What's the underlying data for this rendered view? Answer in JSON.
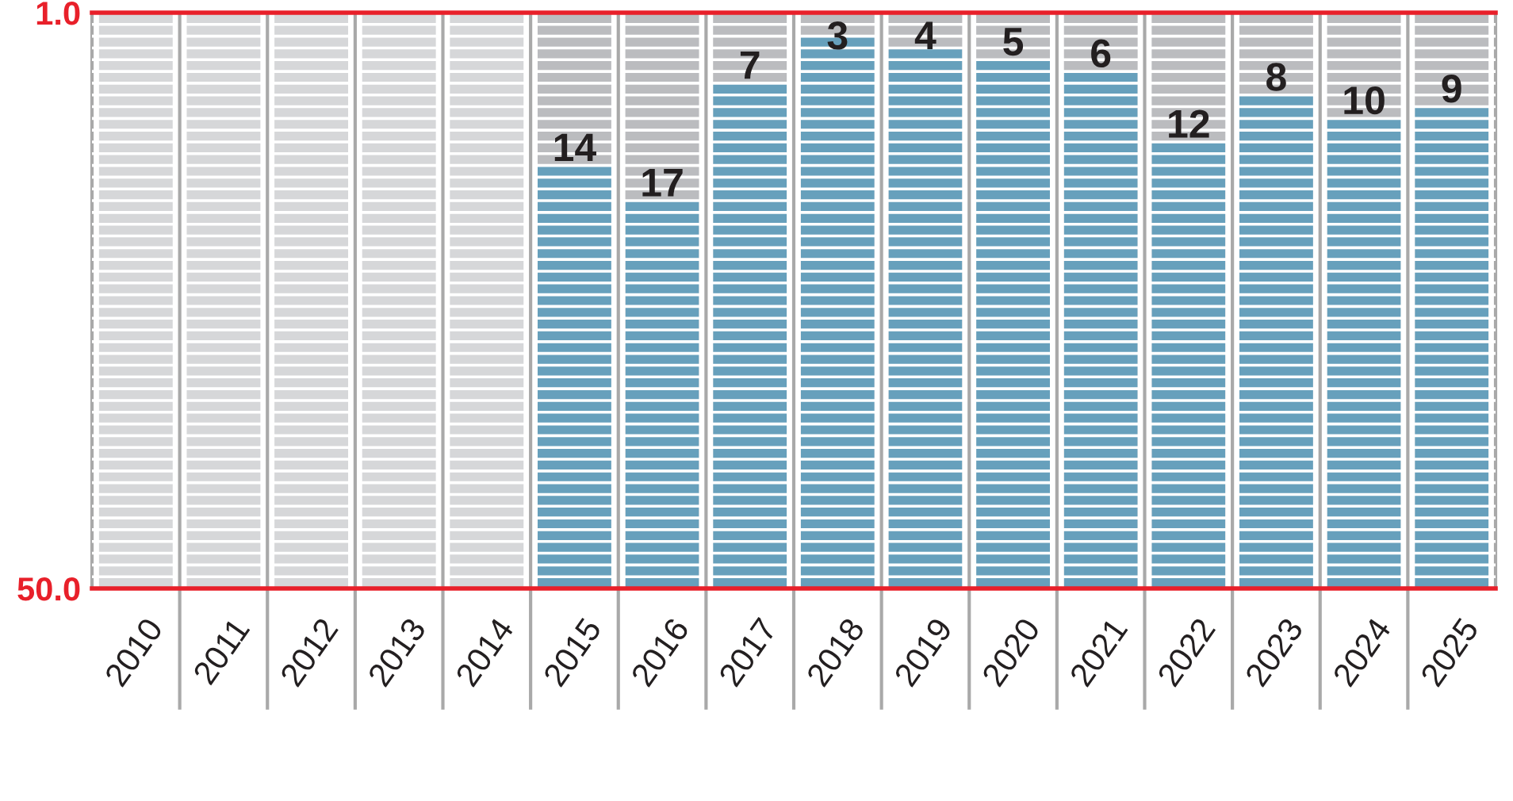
{
  "chart_data": {
    "type": "bar",
    "categories": [
      "2010",
      "2011",
      "2012",
      "2013",
      "2014",
      "2015",
      "2016",
      "2017",
      "2018",
      "2019",
      "2020",
      "2021",
      "2022",
      "2023",
      "2024",
      "2025"
    ],
    "base": [
      null,
      null,
      null,
      null,
      null,
      50,
      50,
      50,
      50,
      50,
      50,
      50,
      50,
      50,
      50,
      50
    ],
    "values": [
      null,
      null,
      null,
      null,
      null,
      -36,
      -33,
      -43,
      -47,
      -46,
      -45,
      -44,
      -38,
      -42,
      -40,
      -41
    ],
    "value_labels": [
      null,
      null,
      null,
      null,
      null,
      "14",
      "17",
      "7",
      "3",
      "4",
      "5",
      "6",
      "12",
      "8",
      "10",
      "9"
    ],
    "color": "#67a0bc",
    "ylim": [
      50,
      1
    ],
    "yticks": [
      {
        "value": 1,
        "label": "1.0"
      },
      {
        "value": 2,
        "label": null
      },
      {
        "value": 3,
        "label": null
      },
      {
        "value": 4,
        "label": null
      },
      {
        "value": 5,
        "label": null
      },
      {
        "value": 6,
        "label": null
      },
      {
        "value": 7,
        "label": null
      },
      {
        "value": 8,
        "label": null
      },
      {
        "value": 9,
        "label": null
      },
      {
        "value": 10,
        "label": null
      },
      {
        "value": 11,
        "label": null
      },
      {
        "value": 12,
        "label": null
      },
      {
        "value": 13,
        "label": null
      },
      {
        "value": 14,
        "label": null
      },
      {
        "value": 15,
        "label": null
      },
      {
        "value": 16,
        "label": null
      },
      {
        "value": 17,
        "label": null
      },
      {
        "value": 18,
        "label": null
      },
      {
        "value": 19,
        "label": null
      },
      {
        "value": 20,
        "label": null
      },
      {
        "value": 21,
        "label": null
      },
      {
        "value": 22,
        "label": null
      },
      {
        "value": 23,
        "label": null
      },
      {
        "value": 24,
        "label": null
      },
      {
        "value": 25,
        "label": null
      },
      {
        "value": 26,
        "label": null
      },
      {
        "value": 27,
        "label": null
      },
      {
        "value": 28,
        "label": null
      },
      {
        "value": 29,
        "label": null
      },
      {
        "value": 30,
        "label": null
      },
      {
        "value": 31,
        "label": null
      },
      {
        "value": 32,
        "label": null
      },
      {
        "value": 33,
        "label": null
      },
      {
        "value": 34,
        "label": null
      },
      {
        "value": 35,
        "label": null
      },
      {
        "value": 36,
        "label": null
      },
      {
        "value": 37,
        "label": null
      },
      {
        "value": 38,
        "label": null
      },
      {
        "value": 39,
        "label": null
      },
      {
        "value": 40,
        "label": null
      },
      {
        "value": 41,
        "label": null
      },
      {
        "value": 42,
        "label": null
      },
      {
        "value": 43,
        "label": null
      },
      {
        "value": 44,
        "label": null
      },
      {
        "value": 45,
        "label": null
      },
      {
        "value": 46,
        "label": null
      },
      {
        "value": 47,
        "label": null
      },
      {
        "value": 48,
        "label": null
      },
      {
        "value": 49,
        "label": null
      },
      {
        "value": 50,
        "label": "50.0"
      }
    ],
    "grid": "y",
    "bands": [
      {
        "axis": "x",
        "from": "2010",
        "to": "2014",
        "color": "#d6d7d9"
      },
      {
        "axis": "x",
        "from": "2015",
        "to": "2025",
        "color": "#bbbcbf"
      }
    ]
  }
}
